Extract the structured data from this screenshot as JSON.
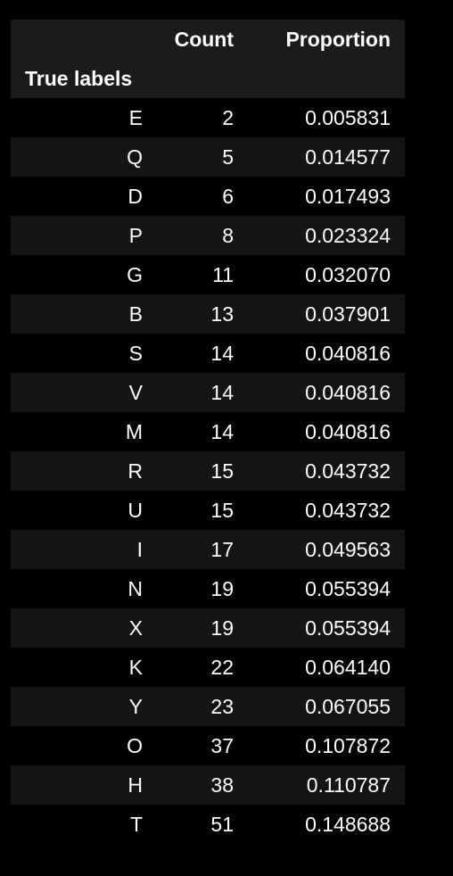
{
  "table": {
    "columns": [
      "Count",
      "Proportion"
    ],
    "index_name": "True labels",
    "rows": [
      {
        "label": "E",
        "count": "2",
        "proportion": "0.005831"
      },
      {
        "label": "Q",
        "count": "5",
        "proportion": "0.014577"
      },
      {
        "label": "D",
        "count": "6",
        "proportion": "0.017493"
      },
      {
        "label": "P",
        "count": "8",
        "proportion": "0.023324"
      },
      {
        "label": "G",
        "count": "11",
        "proportion": "0.032070"
      },
      {
        "label": "B",
        "count": "13",
        "proportion": "0.037901"
      },
      {
        "label": "S",
        "count": "14",
        "proportion": "0.040816"
      },
      {
        "label": "V",
        "count": "14",
        "proportion": "0.040816"
      },
      {
        "label": "M",
        "count": "14",
        "proportion": "0.040816"
      },
      {
        "label": "R",
        "count": "15",
        "proportion": "0.043732"
      },
      {
        "label": "U",
        "count": "15",
        "proportion": "0.043732"
      },
      {
        "label": "I",
        "count": "17",
        "proportion": "0.049563"
      },
      {
        "label": "N",
        "count": "19",
        "proportion": "0.055394"
      },
      {
        "label": "X",
        "count": "19",
        "proportion": "0.055394"
      },
      {
        "label": "K",
        "count": "22",
        "proportion": "0.064140"
      },
      {
        "label": "Y",
        "count": "23",
        "proportion": "0.067055"
      },
      {
        "label": "O",
        "count": "37",
        "proportion": "0.107872"
      },
      {
        "label": "H",
        "count": "38",
        "proportion": "0.110787"
      },
      {
        "label": "T",
        "count": "51",
        "proportion": "0.148688"
      }
    ]
  },
  "colors": {
    "background": "#000000",
    "header_background": "#1b1b1b",
    "stripe_background": "#151515",
    "text": "#ffffff"
  }
}
